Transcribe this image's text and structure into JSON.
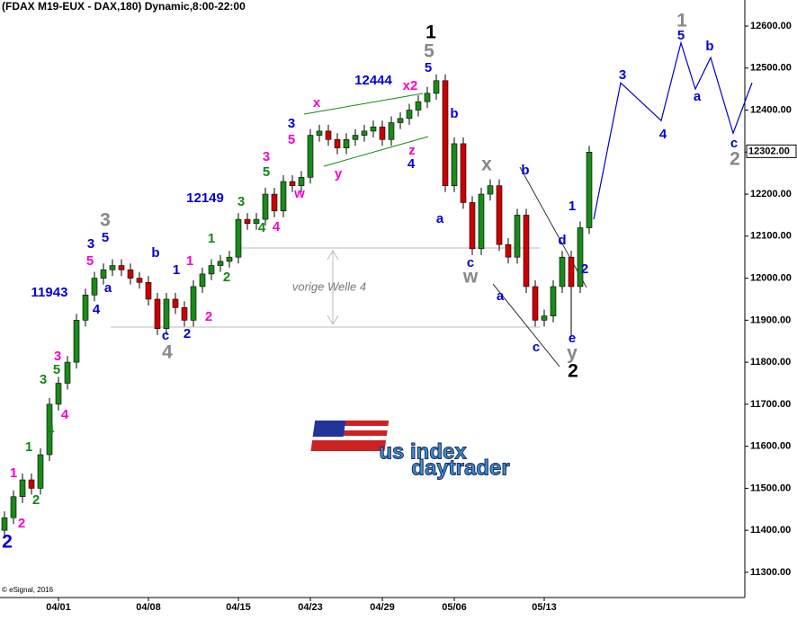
{
  "chart_data": {
    "type": "candlestick",
    "title": "(FDAX M19-EUX - DAX,180) Dynamic,8:00-22:00",
    "copyright": "© eSignal, 2016",
    "note": "vorige Welle 4",
    "logo": [
      "us index",
      "daytrader"
    ],
    "up_color": "#1a8a1a",
    "down_color": "#cc0000",
    "categories": [
      null,
      null,
      null,
      null,
      null,
      null,
      "04/01",
      null,
      null,
      null,
      null,
      null,
      null,
      null,
      null,
      null,
      "04/08",
      null,
      null,
      null,
      null,
      null,
      null,
      null,
      null,
      null,
      "04/15",
      null,
      null,
      null,
      null,
      null,
      null,
      null,
      "04/23",
      null,
      null,
      null,
      null,
      null,
      null,
      null,
      "04/29",
      null,
      null,
      null,
      null,
      null,
      null,
      null,
      "05/06",
      null,
      null,
      null,
      null,
      null,
      null,
      null,
      null,
      null,
      "05/13",
      null,
      null,
      null,
      null,
      null
    ],
    "open": [
      11400,
      11430,
      11480,
      11520,
      11500,
      11580,
      11700,
      11750,
      11800,
      11900,
      11960,
      12000,
      12020,
      12030,
      12020,
      12000,
      11990,
      11950,
      11880,
      11950,
      11930,
      11900,
      11980,
      12010,
      12030,
      12040,
      12050,
      12140,
      12130,
      12140,
      12200,
      12160,
      12230,
      12220,
      12240,
      12340,
      12350,
      12330,
      12310,
      12330,
      12340,
      12350,
      12360,
      12330,
      12370,
      12380,
      12400,
      12420,
      12440,
      12470,
      12220,
      12320,
      12180,
      12070,
      12200,
      12220,
      12080,
      12050,
      12150,
      11980,
      11900,
      11910,
      11980,
      12050,
      11980,
      12120
    ],
    "high": [
      11445,
      11495,
      11535,
      11535,
      11595,
      11715,
      11765,
      11815,
      11915,
      11975,
      12015,
      12035,
      12045,
      12045,
      12035,
      12015,
      12005,
      11965,
      11965,
      11965,
      11945,
      11995,
      12025,
      12045,
      12055,
      12065,
      12155,
      12155,
      12155,
      12215,
      12215,
      12245,
      12245,
      12255,
      12355,
      12365,
      12365,
      12345,
      12345,
      12355,
      12365,
      12375,
      12375,
      12385,
      12395,
      12415,
      12435,
      12455,
      12485,
      12485,
      12335,
      12335,
      12195,
      12215,
      12235,
      12235,
      12095,
      12165,
      12165,
      11995,
      11925,
      11995,
      12065,
      12065,
      12135,
      12315
    ],
    "low": [
      11385,
      11415,
      11465,
      11485,
      11485,
      11565,
      11685,
      11735,
      11785,
      11885,
      11945,
      11985,
      12005,
      12005,
      11985,
      11975,
      11935,
      11865,
      11865,
      11915,
      11885,
      11885,
      11965,
      11995,
      12015,
      12025,
      12035,
      12115,
      12115,
      12125,
      12145,
      12145,
      12205,
      12205,
      12225,
      12325,
      12315,
      12295,
      12295,
      12315,
      12325,
      12335,
      12315,
      12315,
      12355,
      12365,
      12385,
      12405,
      12425,
      12205,
      12205,
      12165,
      12055,
      12055,
      12185,
      12065,
      12035,
      12035,
      11965,
      11885,
      11885,
      11895,
      11965,
      11860,
      11965,
      12105
    ],
    "close": [
      11430,
      11480,
      11520,
      11500,
      11580,
      11700,
      11750,
      11800,
      11900,
      11960,
      12000,
      12020,
      12030,
      12020,
      12000,
      11990,
      11950,
      11880,
      11950,
      11930,
      11900,
      11980,
      12010,
      12030,
      12040,
      12050,
      12140,
      12130,
      12140,
      12200,
      12160,
      12230,
      12220,
      12240,
      12340,
      12350,
      12330,
      12310,
      12330,
      12340,
      12350,
      12360,
      12330,
      12370,
      12380,
      12400,
      12420,
      12440,
      12470,
      12220,
      12320,
      12180,
      12070,
      12200,
      12220,
      12080,
      12050,
      12150,
      11980,
      11900,
      11910,
      11980,
      12050,
      11980,
      12120,
      12300
    ],
    "ylim": [
      11240,
      12662
    ],
    "yticks": [
      {
        "value": 11300,
        "label": "11300.00"
      },
      {
        "value": 11400,
        "label": "11400.00"
      },
      {
        "value": 11500,
        "label": "11500.00"
      },
      {
        "value": 11600,
        "label": "11600.00"
      },
      {
        "value": 11700,
        "label": "11700.00"
      },
      {
        "value": 11800,
        "label": "11800.00"
      },
      {
        "value": 11900,
        "label": "11900.00"
      },
      {
        "value": 12000,
        "label": "12000.00"
      },
      {
        "value": 12100,
        "label": "12100.00"
      },
      {
        "value": 12200,
        "label": "12200.00"
      },
      {
        "value": 12300,
        "label": "12300.00"
      },
      {
        "value": 12400,
        "label": "12400.00"
      },
      {
        "value": 12500,
        "label": "12500.00"
      },
      {
        "value": 12600,
        "label": "12600.00"
      }
    ],
    "last_price": {
      "value": 12302,
      "label": "12302.00"
    },
    "projection": {
      "color": "#0000cc",
      "values": [
        12140,
        12465,
        12375,
        12560,
        12450,
        12525,
        12345,
        12465
      ]
    },
    "annotations": [
      {
        "text": "2",
        "color": "#0000dd"
      },
      {
        "text": "2",
        "color": "#ff00cc"
      },
      {
        "text": "1",
        "color": "#ff00cc"
      },
      {
        "text": "2",
        "color": "#118811"
      },
      {
        "text": "1",
        "color": "#118811"
      },
      {
        "text": "4",
        "color": "#118811"
      },
      {
        "text": "4",
        "color": "#ff00cc"
      },
      {
        "text": "5",
        "color": "#118811"
      },
      {
        "text": "3",
        "color": "#118811"
      },
      {
        "text": "3",
        "color": "#ff00cc"
      },
      {
        "text": "4",
        "color": "#0000dd"
      },
      {
        "text": "11943",
        "color": "#0000dd"
      },
      {
        "text": "a",
        "color": "#0000dd"
      },
      {
        "text": "3",
        "color": "#0000dd"
      },
      {
        "text": "5",
        "color": "#0000dd"
      },
      {
        "text": "5",
        "color": "#ff00cc"
      },
      {
        "text": "3",
        "color": "#888888"
      },
      {
        "text": "b",
        "color": "#0000dd"
      },
      {
        "text": "1",
        "color": "#0000dd"
      },
      {
        "text": "1",
        "color": "#ff00cc"
      },
      {
        "text": "c",
        "color": "#0000dd"
      },
      {
        "text": "4",
        "color": "#888888"
      },
      {
        "text": "2",
        "color": "#0000dd"
      },
      {
        "text": "2",
        "color": "#ff00cc"
      },
      {
        "text": "1",
        "color": "#118811"
      },
      {
        "text": "2",
        "color": "#118811"
      },
      {
        "text": "12149",
        "color": "#0000dd"
      },
      {
        "text": "3",
        "color": "#118811"
      },
      {
        "text": "4",
        "color": "#118811"
      },
      {
        "text": "4",
        "color": "#ff00cc"
      },
      {
        "text": "5",
        "color": "#118811"
      },
      {
        "text": "3",
        "color": "#ff00cc"
      },
      {
        "text": "w",
        "color": "#ff00cc"
      },
      {
        "text": "y",
        "color": "#ff00cc"
      },
      {
        "text": "3",
        "color": "#0000dd"
      },
      {
        "text": "5",
        "color": "#ff00cc"
      },
      {
        "text": "x",
        "color": "#ff00cc"
      },
      {
        "text": "12444",
        "color": "#0000dd"
      },
      {
        "text": "x2",
        "color": "#ff00cc"
      },
      {
        "text": "z",
        "color": "#ff00cc"
      },
      {
        "text": "4",
        "color": "#0000dd"
      },
      {
        "text": "5",
        "color": "#0000dd"
      },
      {
        "text": "5",
        "color": "#888888"
      },
      {
        "text": "1",
        "color": "#000000"
      },
      {
        "text": "b",
        "color": "#0000dd"
      },
      {
        "text": "a",
        "color": "#0000dd"
      },
      {
        "text": "x",
        "color": "#888888"
      },
      {
        "text": "c",
        "color": "#0000dd"
      },
      {
        "text": "w",
        "color": "#888888"
      },
      {
        "text": "b",
        "color": "#0000dd"
      },
      {
        "text": "a",
        "color": "#0000dd"
      },
      {
        "text": "c",
        "color": "#0000dd"
      },
      {
        "text": "d",
        "color": "#0000dd"
      },
      {
        "text": "1",
        "color": "#0000dd"
      },
      {
        "text": "2",
        "color": "#0000dd"
      },
      {
        "text": "e",
        "color": "#0000dd"
      },
      {
        "text": "y",
        "color": "#888888"
      },
      {
        "text": "2",
        "color": "#000000"
      },
      {
        "text": "3",
        "color": "#0000dd"
      },
      {
        "text": "4",
        "color": "#0000dd"
      },
      {
        "text": "1",
        "color": "#888888"
      },
      {
        "text": "5",
        "color": "#0000dd"
      },
      {
        "text": "b",
        "color": "#0000dd"
      },
      {
        "text": "a",
        "color": "#0000dd"
      },
      {
        "text": "c",
        "color": "#0000dd"
      },
      {
        "text": "2",
        "color": "#888888"
      }
    ]
  }
}
